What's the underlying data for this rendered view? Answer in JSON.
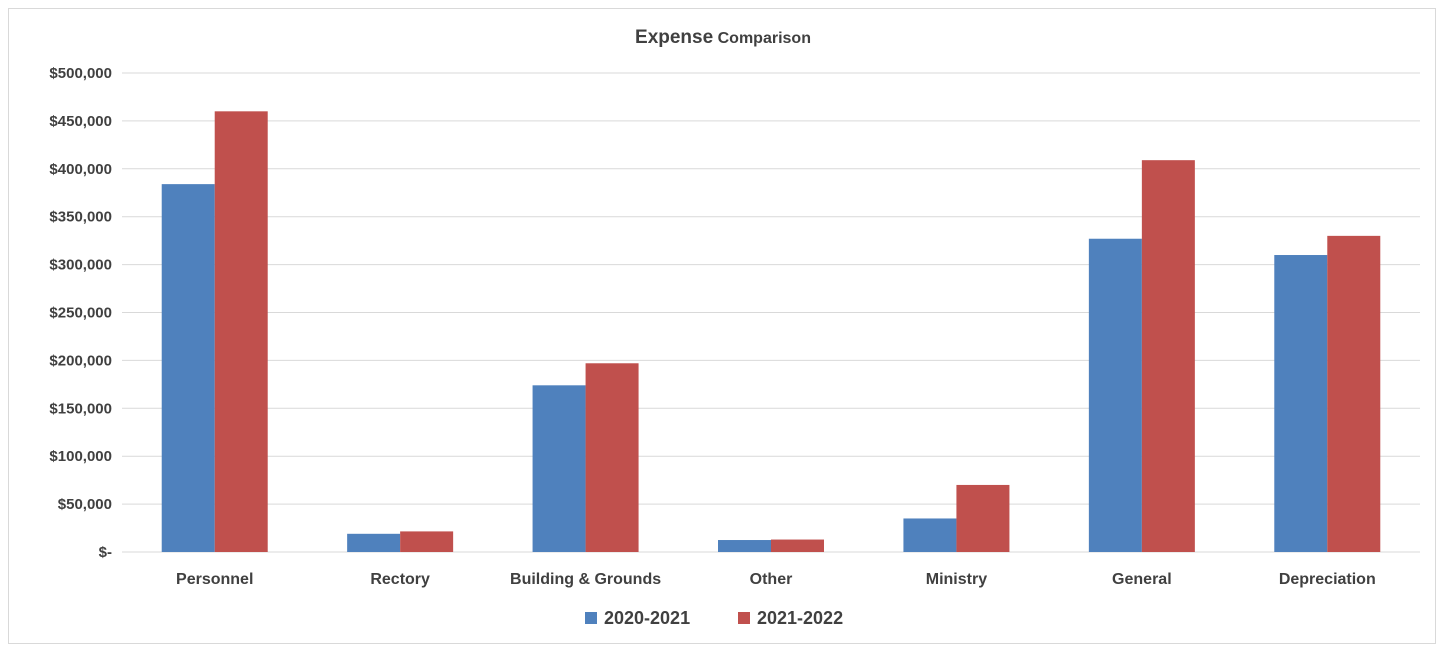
{
  "chart_data": {
    "type": "bar",
    "title_main": "Expense",
    "title_rest": "Comparison",
    "categories": [
      "Personnel",
      "Rectory",
      "Building & Grounds",
      "Other",
      "Ministry",
      "General",
      "Depreciation"
    ],
    "series": [
      {
        "name": "2020-2021",
        "color": "#4f81bd",
        "values": [
          384000,
          19000,
          174000,
          12500,
          35000,
          327000,
          310000
        ]
      },
      {
        "name": "2021-2022",
        "color": "#c0504d",
        "values": [
          460000,
          21500,
          197000,
          13000,
          70000,
          409000,
          330000
        ]
      }
    ],
    "ylim": [
      0,
      500000
    ],
    "yticks": [
      0,
      50000,
      100000,
      150000,
      200000,
      250000,
      300000,
      350000,
      400000,
      450000,
      500000
    ],
    "ytick_labels": [
      "$-",
      "$50,000",
      "$100,000",
      "$150,000",
      "$200,000",
      "$250,000",
      "$300,000",
      "$350,000",
      "$400,000",
      "$450,000",
      "$500,000"
    ],
    "xlabel": "",
    "ylabel": "",
    "grid": true,
    "legend_position": "bottom-center"
  }
}
